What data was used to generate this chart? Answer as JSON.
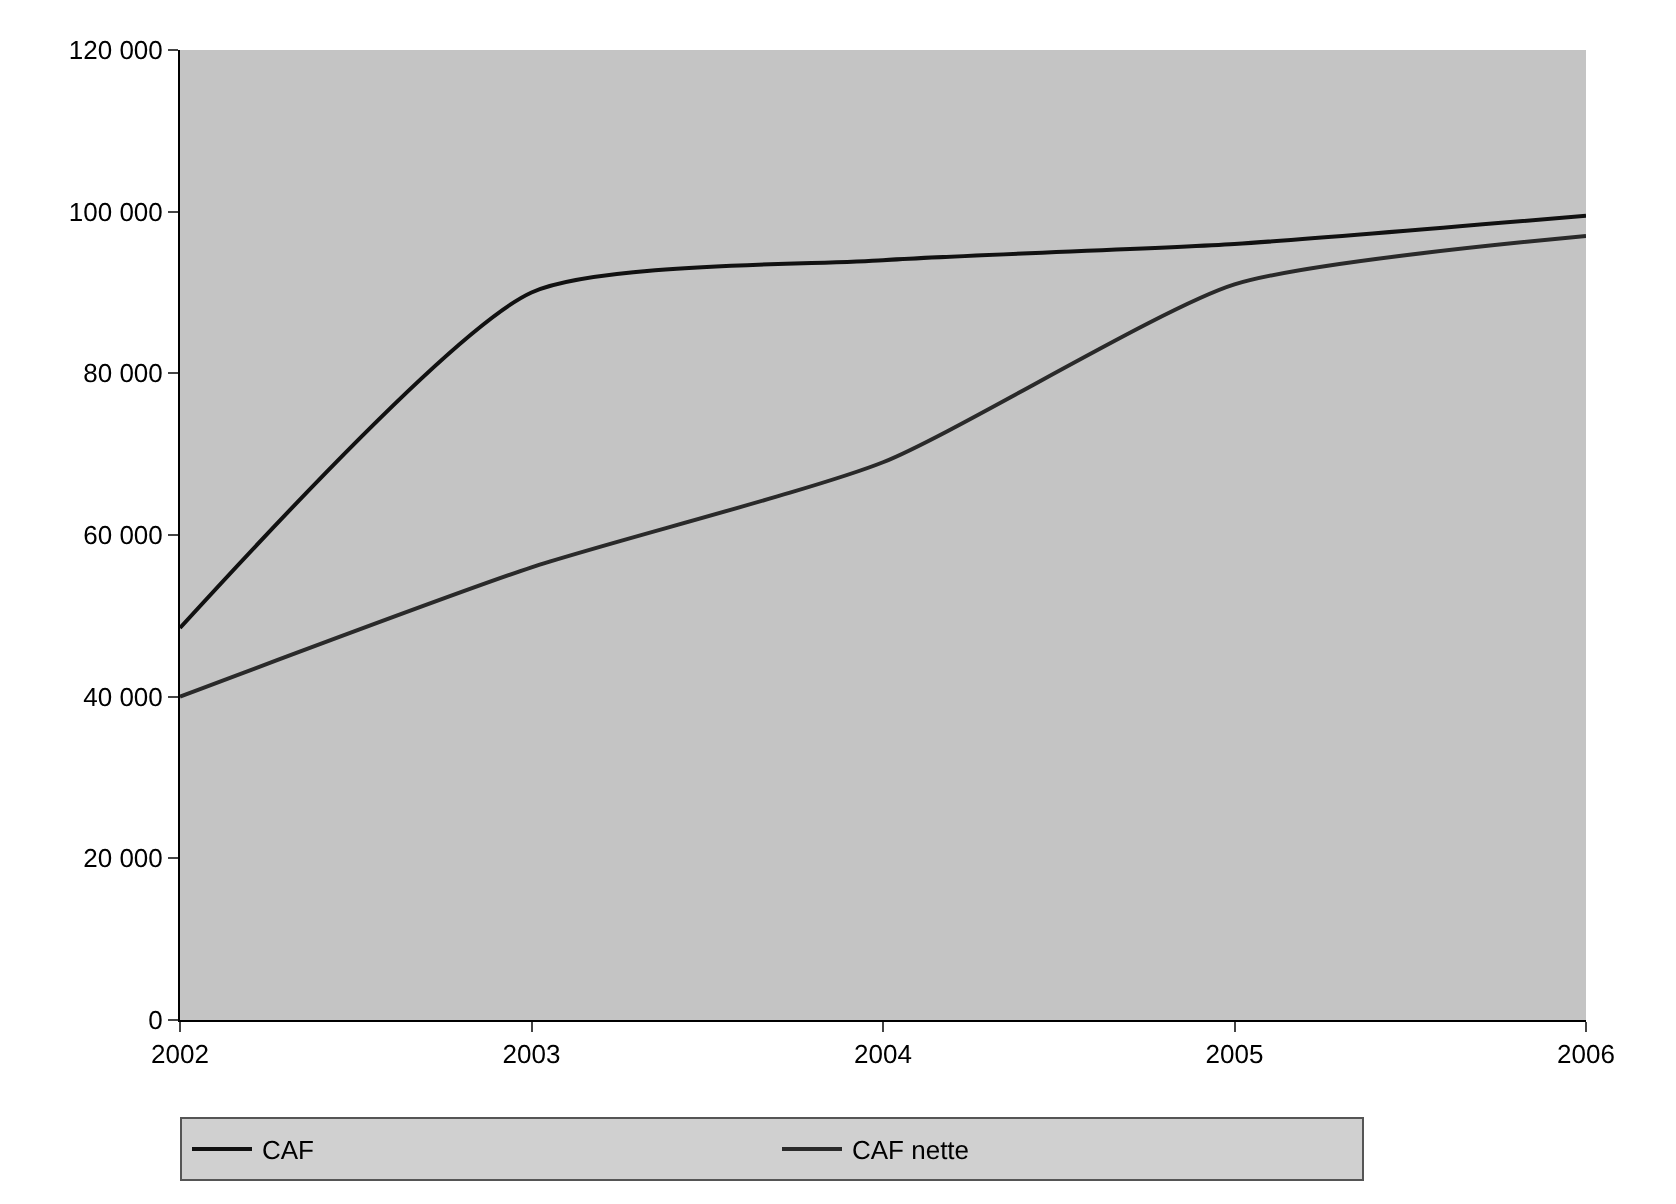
{
  "chart_data": {
    "type": "line",
    "x": [
      2002,
      2003,
      2004,
      2005,
      2006
    ],
    "series": [
      {
        "name": "CAF",
        "color": "#111111",
        "values": [
          48500,
          90000,
          94000,
          96000,
          99500
        ]
      },
      {
        "name": "CAF nette",
        "color": "#2a2a2a",
        "values": [
          40000,
          56000,
          69000,
          91000,
          97000
        ]
      }
    ],
    "xlim": [
      2002,
      2006
    ],
    "xticks": [
      2002,
      2003,
      2004,
      2005,
      2006
    ],
    "ylim": [
      0,
      120000
    ],
    "yticks": [
      {
        "value": 0,
        "label": "0"
      },
      {
        "value": 20000,
        "label": "20 000"
      },
      {
        "value": 40000,
        "label": "40 000"
      },
      {
        "value": 60000,
        "label": "60 000"
      },
      {
        "value": 80000,
        "label": "80 000"
      },
      {
        "value": 100000,
        "label": "100 000"
      },
      {
        "value": 120000,
        "label": "120 000"
      }
    ],
    "grid": false,
    "legend": "bottom",
    "marker": "none",
    "line_style": "solid"
  }
}
